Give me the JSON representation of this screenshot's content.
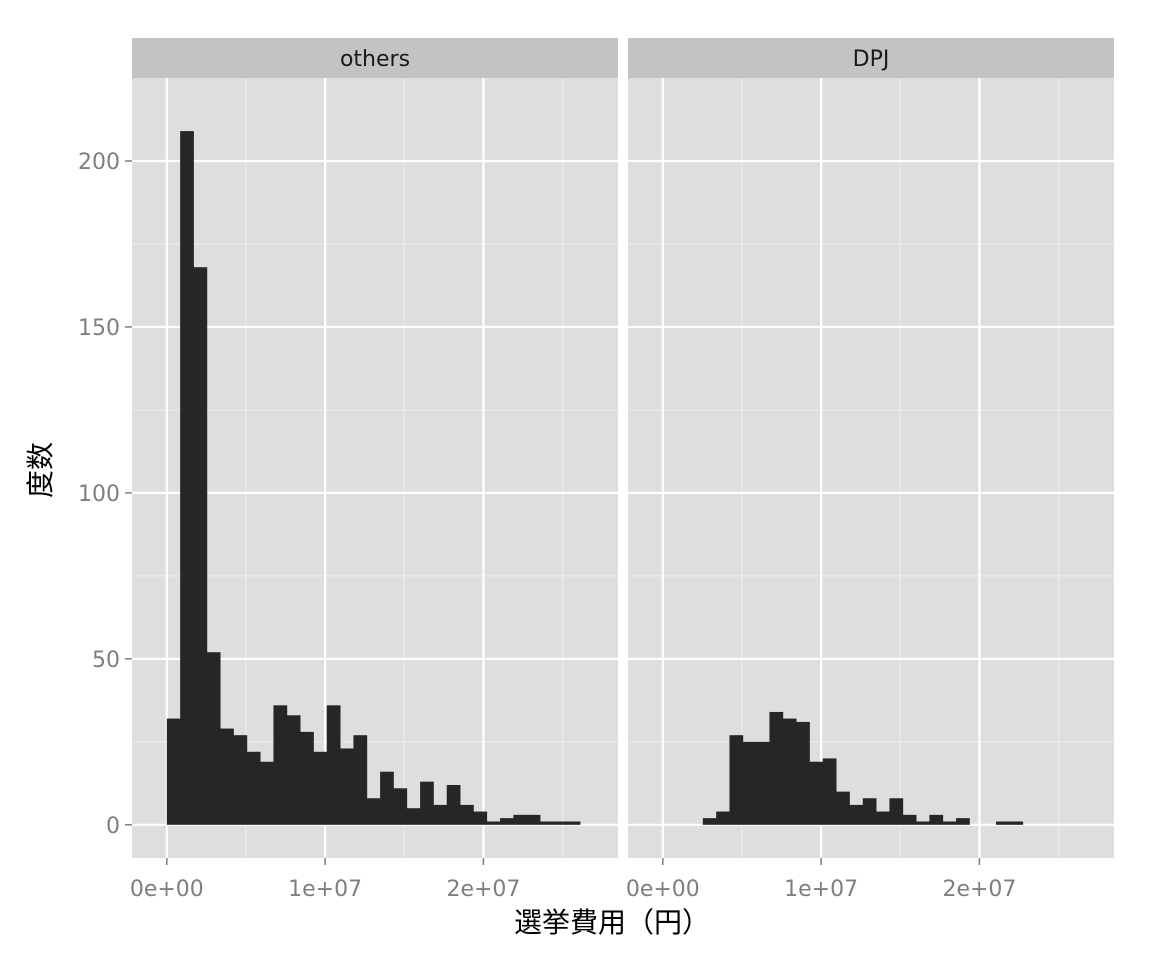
{
  "chart_data": {
    "type": "bar",
    "xlabel": "選挙費用（円）",
    "ylabel": "度数",
    "xlim": [
      -2200000,
      28500000
    ],
    "ylim": [
      -10,
      225
    ],
    "x_ticks": [
      0,
      10000000,
      20000000
    ],
    "x_tick_labels": [
      "0e+00",
      "1e+07",
      "2e+07"
    ],
    "y_ticks": [
      0,
      50,
      100,
      150,
      200
    ],
    "y_tick_labels": [
      "0",
      "50",
      "100",
      "150",
      "200"
    ],
    "bin_start": 0,
    "bin_width": 842000,
    "grid": true,
    "legend": "none",
    "colors": {
      "bar": "#262626",
      "panel": "#dedede",
      "strip": "#c3c3c3",
      "grid_major": "#ffffff",
      "grid_minor": "#ececec",
      "tick_text": "#7f7f7f"
    },
    "panels": [
      {
        "name": "others",
        "counts": [
          32,
          209,
          168,
          52,
          29,
          27,
          22,
          19,
          36,
          33,
          28,
          22,
          36,
          23,
          27,
          8,
          16,
          11,
          5,
          13,
          6,
          12,
          6,
          4,
          1,
          2,
          3,
          3,
          1,
          1,
          1
        ]
      },
      {
        "name": "DPJ",
        "counts": [
          0,
          0,
          0,
          2,
          4,
          27,
          25,
          25,
          34,
          32,
          31,
          19,
          20,
          10,
          6,
          8,
          4,
          8,
          3,
          1,
          3,
          1,
          2,
          0,
          0,
          1,
          1
        ]
      }
    ]
  }
}
